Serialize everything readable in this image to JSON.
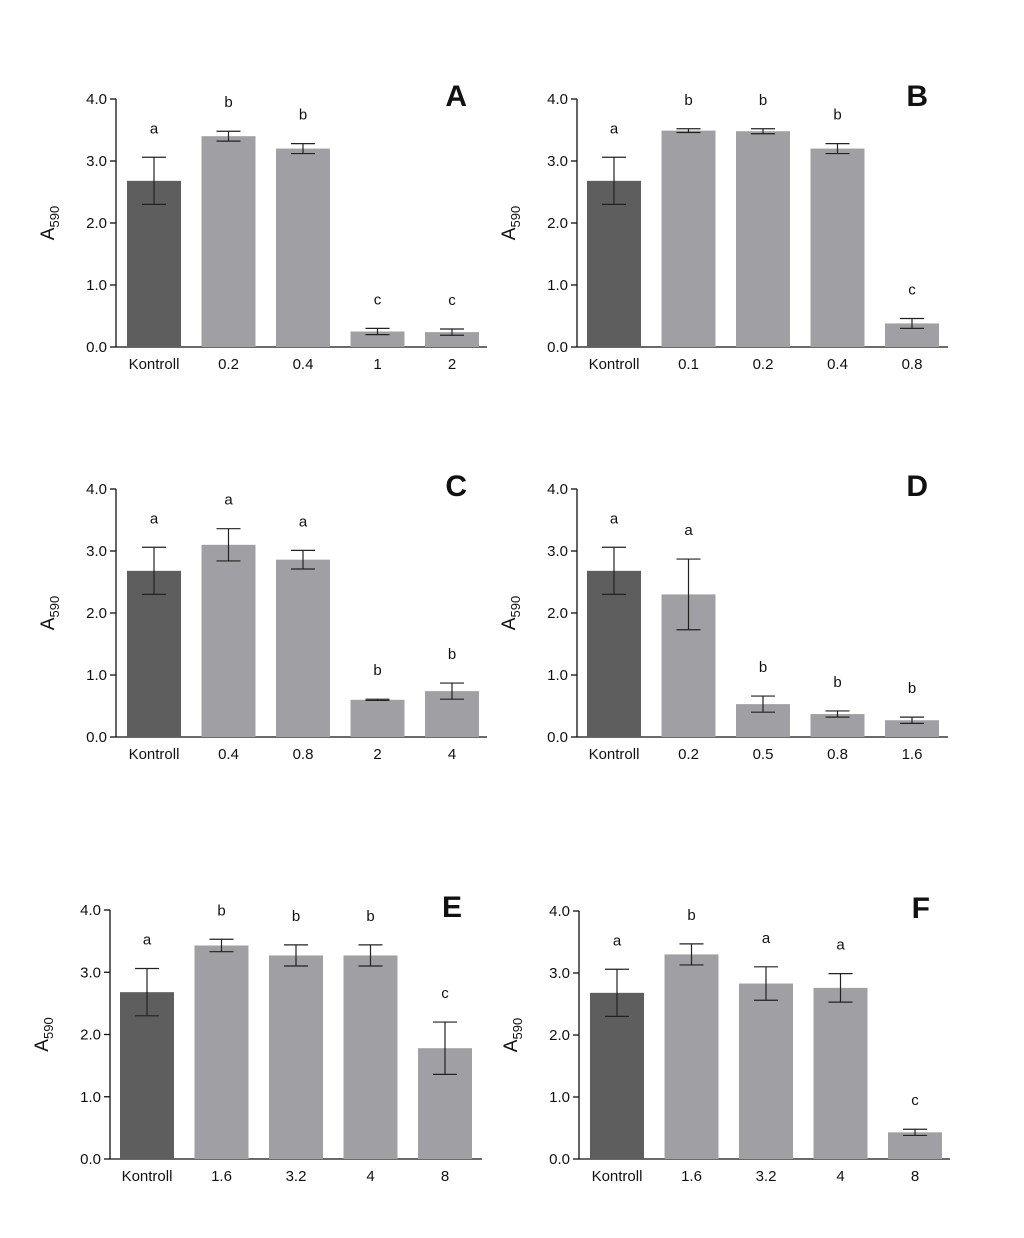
{
  "colors": {
    "control": "#5e5e5e",
    "treatment": "#a0a0a4",
    "axis": "#111111"
  },
  "chart_data": [
    {
      "type": "bar",
      "panel": "A",
      "ylabel": "A",
      "ylabel_sub": "590",
      "ylim": [
        0,
        4
      ],
      "yticks": [
        "0.0",
        "1.0",
        "2.0",
        "3.0",
        "4.0"
      ],
      "categories": [
        "Kontroll",
        "0.2",
        "0.4",
        "1",
        "2"
      ],
      "values": [
        2.68,
        3.4,
        3.2,
        0.25,
        0.24
      ],
      "errors": [
        0.38,
        0.08,
        0.08,
        0.05,
        0.05
      ],
      "letters": [
        "a",
        "b",
        "b",
        "c",
        "c"
      ],
      "grid": false
    },
    {
      "type": "bar",
      "panel": "B",
      "ylabel": "A",
      "ylabel_sub": "590",
      "ylim": [
        0,
        4
      ],
      "yticks": [
        "0.0",
        "1.0",
        "2.0",
        "3.0",
        "4.0"
      ],
      "categories": [
        "Kontroll",
        "0.1",
        "0.2",
        "0.4",
        "0.8"
      ],
      "values": [
        2.68,
        3.49,
        3.48,
        3.2,
        0.38
      ],
      "errors": [
        0.38,
        0.03,
        0.04,
        0.08,
        0.08
      ],
      "letters": [
        "a",
        "b",
        "b",
        "b",
        "c"
      ],
      "grid": false
    },
    {
      "type": "bar",
      "panel": "C",
      "ylabel": "A",
      "ylabel_sub": "590",
      "ylim": [
        0,
        4
      ],
      "yticks": [
        "0.0",
        "1.0",
        "2.0",
        "3.0",
        "4.0"
      ],
      "categories": [
        "Kontroll",
        "0.4",
        "0.8",
        "2",
        "4"
      ],
      "values": [
        2.68,
        3.1,
        2.86,
        0.6,
        0.74
      ],
      "errors": [
        0.38,
        0.26,
        0.15,
        0.01,
        0.13
      ],
      "letters": [
        "a",
        "a",
        "a",
        "b",
        "b"
      ],
      "grid": false
    },
    {
      "type": "bar",
      "panel": "D",
      "ylabel": "A",
      "ylabel_sub": "590",
      "ylim": [
        0,
        4
      ],
      "yticks": [
        "0.0",
        "1.0",
        "2.0",
        "3.0",
        "4.0"
      ],
      "categories": [
        "Kontroll",
        "0.2",
        "0.5",
        "0.8",
        "1.6"
      ],
      "values": [
        2.68,
        2.3,
        0.53,
        0.37,
        0.27
      ],
      "errors": [
        0.38,
        0.57,
        0.13,
        0.05,
        0.05
      ],
      "letters": [
        "a",
        "a",
        "b",
        "b",
        "b"
      ],
      "grid": false
    },
    {
      "type": "bar",
      "panel": "E",
      "ylabel": "A",
      "ylabel_sub": "590",
      "ylim": [
        0,
        4
      ],
      "yticks": [
        "0.0",
        "1.0",
        "2.0",
        "3.0",
        "4.0"
      ],
      "categories": [
        "Kontroll",
        "1.6",
        "3.2",
        "4",
        "8"
      ],
      "values": [
        2.68,
        3.43,
        3.27,
        3.27,
        1.78
      ],
      "errors": [
        0.38,
        0.1,
        0.17,
        0.17,
        0.42
      ],
      "letters": [
        "a",
        "b",
        "b",
        "b",
        "c"
      ],
      "grid": false
    },
    {
      "type": "bar",
      "panel": "F",
      "ylabel": "A",
      "ylabel_sub": "590",
      "ylim": [
        0,
        4
      ],
      "yticks": [
        "0.0",
        "1.0",
        "2.0",
        "3.0",
        "4.0"
      ],
      "categories": [
        "Kontroll",
        "1.6",
        "3.2",
        "4",
        "8"
      ],
      "values": [
        2.68,
        3.3,
        2.83,
        2.76,
        0.43
      ],
      "errors": [
        0.38,
        0.17,
        0.27,
        0.23,
        0.05
      ],
      "letters": [
        "a",
        "b",
        "a",
        "a",
        "c"
      ],
      "grid": false
    }
  ]
}
